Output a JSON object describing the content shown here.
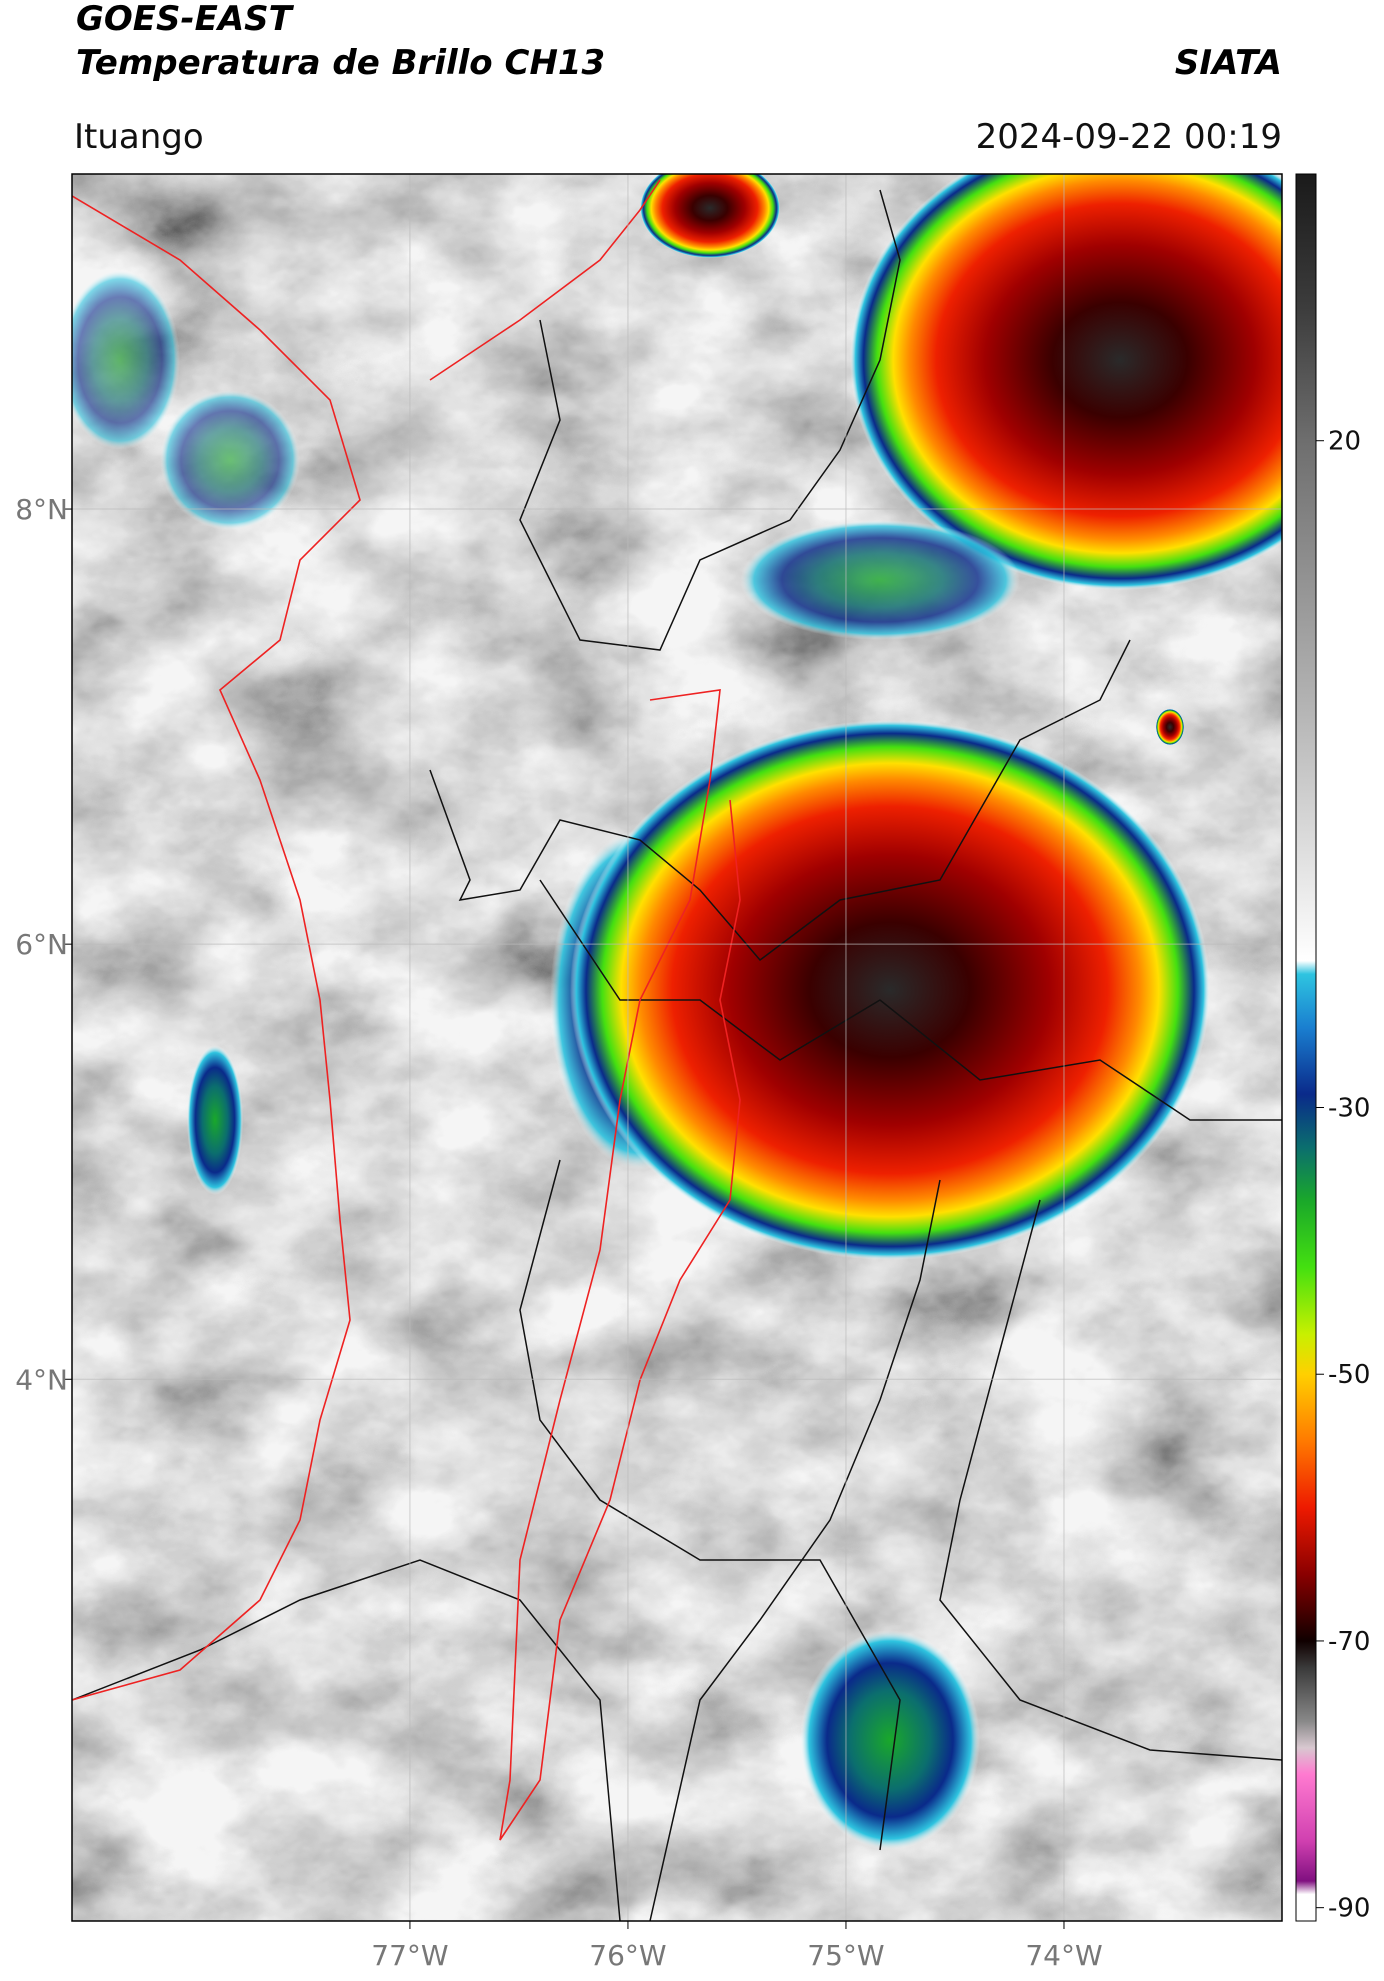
{
  "header": {
    "title": "GOES-EAST",
    "subtitle": "Temperatura de Brillo CH13",
    "source": "SIATA",
    "location": "Ituango",
    "datetime": "2024-09-22 00:19"
  },
  "map": {
    "xlim": [
      -78.55,
      -73.0
    ],
    "ylim": [
      1.51,
      9.54
    ],
    "xticks": [
      {
        "value": -77,
        "label": "77°W"
      },
      {
        "value": -76,
        "label": "76°W"
      },
      {
        "value": -75,
        "label": "75°W"
      },
      {
        "value": -74,
        "label": "74°W"
      }
    ],
    "yticks": [
      {
        "value": 8,
        "label": "8°N"
      },
      {
        "value": 6,
        "label": "6°N"
      },
      {
        "value": 4,
        "label": "4°N"
      }
    ],
    "grid": true
  },
  "colorbar": {
    "clim": [
      -91,
      40
    ],
    "ticks": [
      20,
      -30,
      -50,
      -70,
      -90
    ],
    "colormap": [
      [
        40,
        "#1a1a1a"
      ],
      [
        30,
        "#3c3c3c"
      ],
      [
        20,
        "#6e6e6e"
      ],
      [
        0,
        "#b4b4b4"
      ],
      [
        -19,
        "#ffffff"
      ],
      [
        -20,
        "#2ec4e0"
      ],
      [
        -24,
        "#1a7fd0"
      ],
      [
        -29,
        "#0a2a8a"
      ],
      [
        -33,
        "#0b6e6e"
      ],
      [
        -37,
        "#1aa82a"
      ],
      [
        -42,
        "#44e010"
      ],
      [
        -47,
        "#c8f000"
      ],
      [
        -50,
        "#ffd000"
      ],
      [
        -55,
        "#ff7a00"
      ],
      [
        -60,
        "#ee1a00"
      ],
      [
        -65,
        "#8a0000"
      ],
      [
        -70,
        "#100000"
      ],
      [
        -72,
        "#3a3a3a"
      ],
      [
        -76,
        "#888888"
      ],
      [
        -78,
        "#d8c8d0"
      ],
      [
        -80,
        "#ff7ad0"
      ],
      [
        -85,
        "#d040b0"
      ],
      [
        -88,
        "#801080"
      ],
      [
        -89,
        "#ffffff"
      ],
      [
        -91,
        "#ffffff"
      ]
    ]
  }
}
